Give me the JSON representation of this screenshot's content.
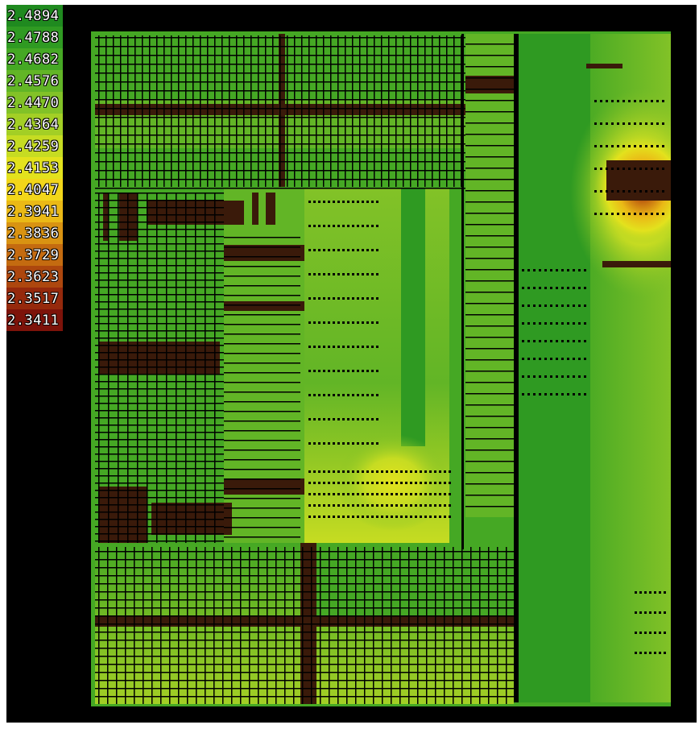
{
  "legend": {
    "entries": [
      {
        "label": "2.4894",
        "color": "#1f8a1f"
      },
      {
        "label": "2.4788",
        "color": "#2f9a22"
      },
      {
        "label": "2.4682",
        "color": "#45a824"
      },
      {
        "label": "2.4576",
        "color": "#62b526"
      },
      {
        "label": "2.4470",
        "color": "#82c227"
      },
      {
        "label": "2.4364",
        "color": "#a3cf25"
      },
      {
        "label": "2.4259",
        "color": "#c6dc22"
      },
      {
        "label": "2.4153",
        "color": "#e3e21d"
      },
      {
        "label": "2.4047",
        "color": "#f2d61a"
      },
      {
        "label": "2.3941",
        "color": "#eab916"
      },
      {
        "label": "2.3836",
        "color": "#d99312"
      },
      {
        "label": "2.3729",
        "color": "#c46b10"
      },
      {
        "label": "2.3623",
        "color": "#ad470e"
      },
      {
        "label": "2.3517",
        "color": "#95290c"
      },
      {
        "label": "2.3411",
        "color": "#7d130a"
      }
    ]
  },
  "colors": {
    "background": "#000000",
    "wire": "#000000",
    "macro": "#3a1a0a"
  }
}
